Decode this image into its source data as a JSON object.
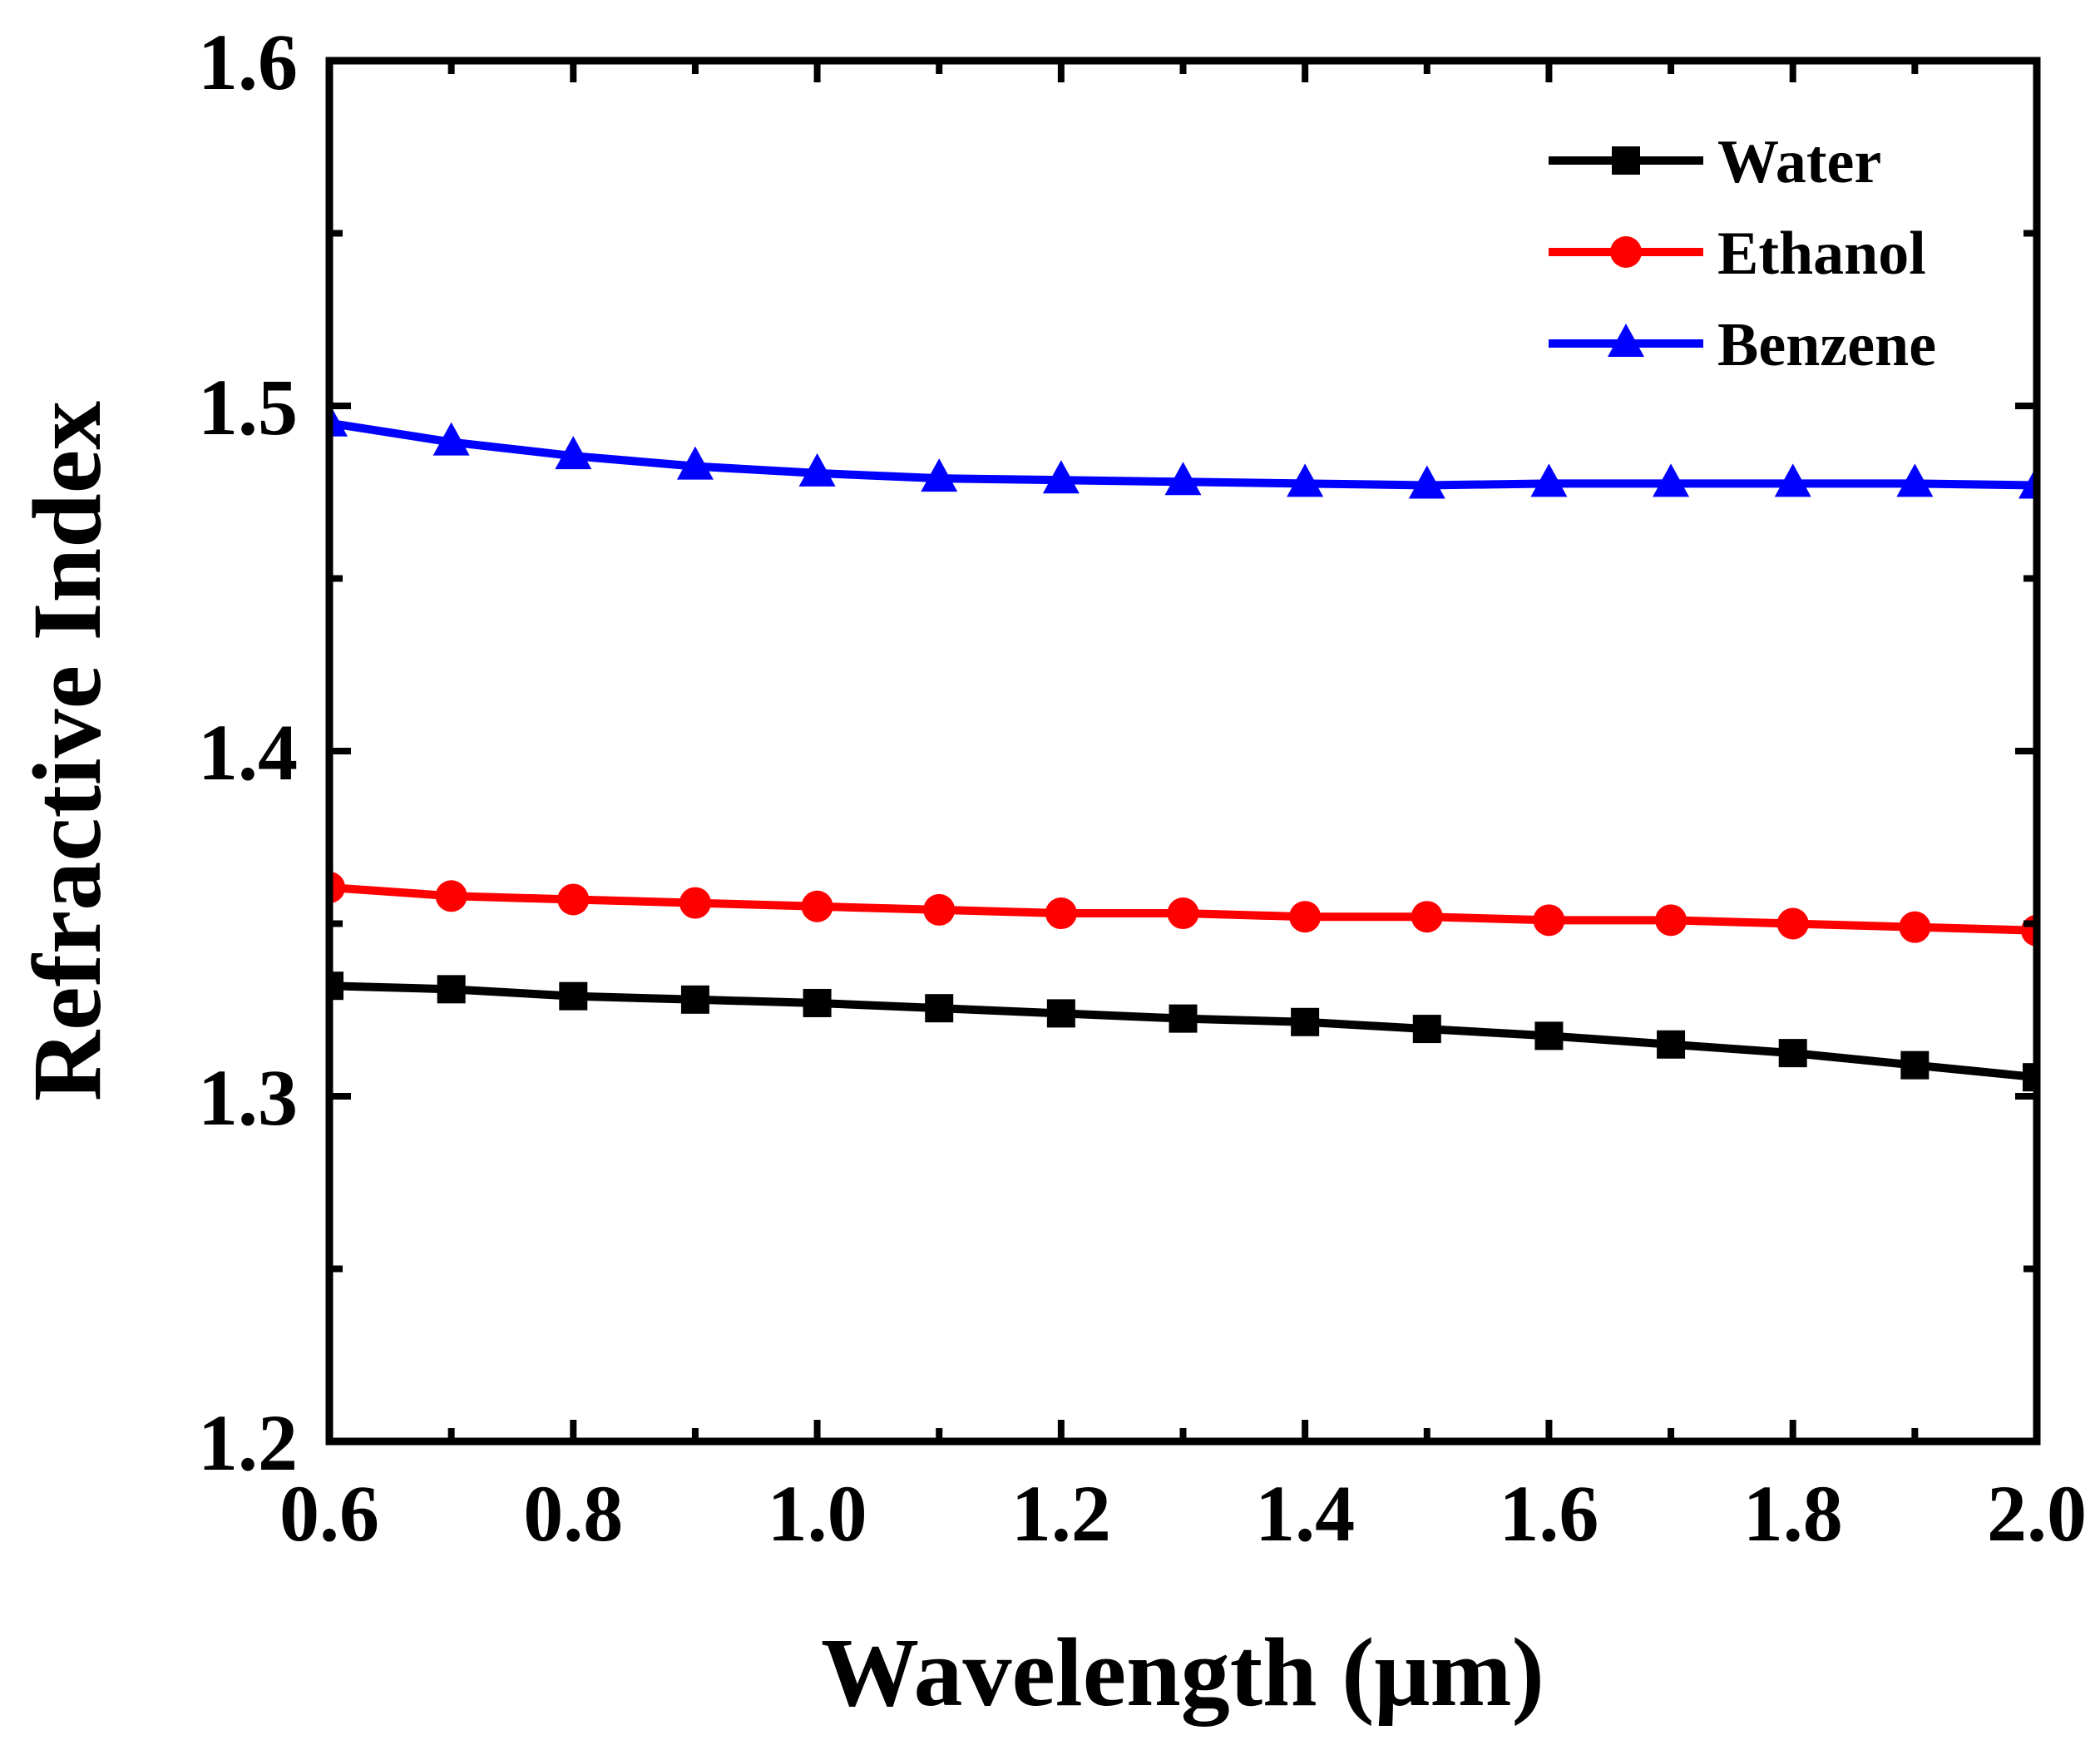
{
  "chart_data": {
    "type": "line",
    "title": "",
    "xlabel": "Wavelength (μm)",
    "ylabel": "Refractive Index",
    "xlim": [
      0.6,
      2.0
    ],
    "ylim": [
      1.2,
      1.6
    ],
    "xticks": [
      0.6,
      0.8,
      1.0,
      1.2,
      1.4,
      1.6,
      1.8,
      2.0
    ],
    "xtick_labels": [
      "0.6",
      "0.8",
      "1.0",
      "1.2",
      "1.4",
      "1.6",
      "1.8",
      "2.0"
    ],
    "yticks": [
      1.2,
      1.3,
      1.4,
      1.5,
      1.6
    ],
    "ytick_labels": [
      "1.2",
      "1.3",
      "1.4",
      "1.5",
      "1.6"
    ],
    "grid": false,
    "legend_position": "top-right",
    "x": [
      0.6,
      0.7,
      0.8,
      0.9,
      1.0,
      1.1,
      1.2,
      1.3,
      1.4,
      1.5,
      1.6,
      1.7,
      1.8,
      1.9,
      2.0
    ],
    "series": [
      {
        "name": "Water",
        "color": "#000000",
        "marker": "square",
        "values": [
          1.332,
          1.331,
          1.329,
          1.328,
          1.327,
          1.3255,
          1.324,
          1.3225,
          1.3215,
          1.3195,
          1.3175,
          1.315,
          1.3125,
          1.309,
          1.3055
        ]
      },
      {
        "name": "Ethanol",
        "color": "#ff0000",
        "marker": "circle",
        "values": [
          1.3605,
          1.358,
          1.357,
          1.356,
          1.355,
          1.354,
          1.353,
          1.353,
          1.352,
          1.352,
          1.351,
          1.351,
          1.35,
          1.349,
          1.348
        ]
      },
      {
        "name": "Benzene",
        "color": "#0000ff",
        "marker": "triangle",
        "values": [
          1.495,
          1.4895,
          1.4855,
          1.4825,
          1.4805,
          1.479,
          1.4785,
          1.478,
          1.4775,
          1.477,
          1.4775,
          1.4775,
          1.4775,
          1.4775,
          1.477
        ]
      }
    ]
  }
}
